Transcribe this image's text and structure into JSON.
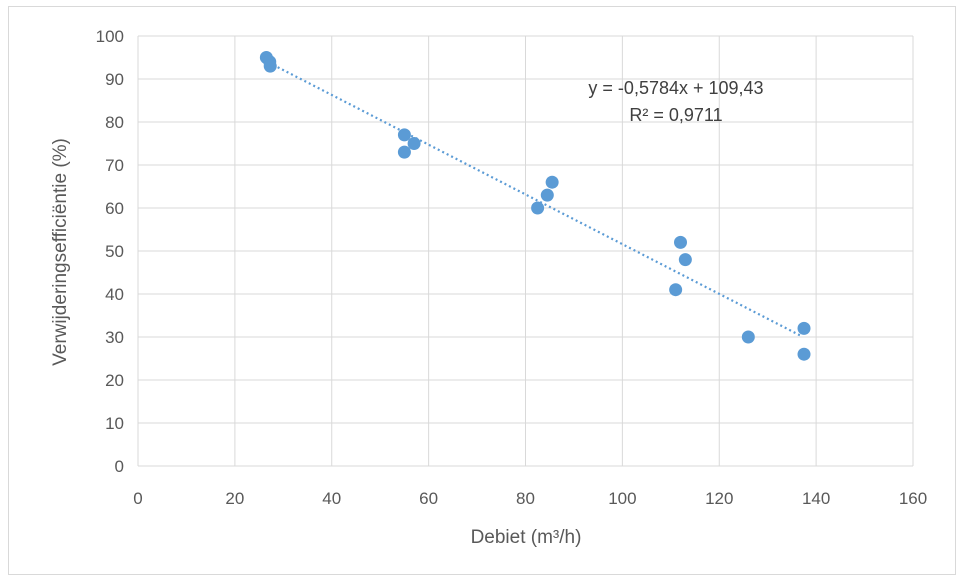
{
  "chart_data": {
    "type": "scatter",
    "title": "",
    "xlabel": "Debiet (m³/h)",
    "ylabel": "Verwijderingsefficiëntie (%)",
    "xlim": [
      0,
      160
    ],
    "ylim": [
      0,
      100
    ],
    "xticks": [
      0,
      20,
      40,
      60,
      80,
      100,
      120,
      140,
      160
    ],
    "yticks": [
      0,
      10,
      20,
      30,
      40,
      50,
      60,
      70,
      80,
      90,
      100
    ],
    "grid": true,
    "legend": "none",
    "marker_color": "#5b9bd5",
    "trendline_color": "#5b9bd5",
    "points": [
      {
        "x": 26.5,
        "y": 95
      },
      {
        "x": 27.2,
        "y": 94
      },
      {
        "x": 27.3,
        "y": 93
      },
      {
        "x": 55,
        "y": 77
      },
      {
        "x": 57,
        "y": 75
      },
      {
        "x": 55,
        "y": 73
      },
      {
        "x": 85.5,
        "y": 66
      },
      {
        "x": 84.5,
        "y": 63
      },
      {
        "x": 82.5,
        "y": 60
      },
      {
        "x": 112,
        "y": 52
      },
      {
        "x": 113,
        "y": 48
      },
      {
        "x": 111,
        "y": 41
      },
      {
        "x": 126,
        "y": 30
      },
      {
        "x": 137.5,
        "y": 32
      },
      {
        "x": 137.5,
        "y": 26
      }
    ],
    "trendline": {
      "type": "linear",
      "slope": -0.5784,
      "intercept": 109.43,
      "x_range": [
        27,
        137
      ],
      "equation_label": "y = -0,5784x + 109,43",
      "r2_label": "R² = 0,9711"
    }
  }
}
